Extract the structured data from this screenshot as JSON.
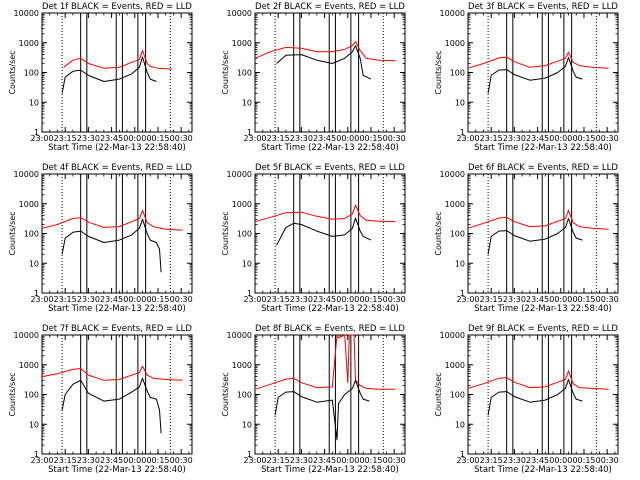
{
  "chart_data": [
    {
      "type": "line",
      "title": "Det 1f BLACK = Events, RED = LLD",
      "xlabel": "Start Time (22-Mar-13 22:58:40)",
      "ylabel": "Counts/sec",
      "x_ticks": [
        "23:00",
        "23:15",
        "23:30",
        "23:45",
        "00:00",
        "00:15",
        "00:30"
      ],
      "y_ticks": [
        "1",
        "10",
        "100",
        "1000",
        "10000"
      ],
      "ylim": [
        1,
        10000
      ],
      "log_y": true,
      "dotted_lines": [
        "23:13",
        "00:23"
      ],
      "solid_lines": [
        "23:25",
        "23:29",
        "23:48",
        "23:52",
        "00:02",
        "00:07"
      ],
      "series": [
        {
          "color": "#ff0000",
          "x": [
            "23:14",
            "23:20",
            "23:25",
            "23:30",
            "23:40",
            "23:50",
            "23:58",
            "00:03",
            "00:05",
            "00:08",
            "00:10",
            "00:15",
            "00:24"
          ],
          "values": [
            150,
            260,
            300,
            200,
            140,
            150,
            220,
            270,
            550,
            200,
            160,
            140,
            130
          ]
        },
        {
          "color": "#000000",
          "x": [
            "23:13",
            "23:15",
            "23:20",
            "23:25",
            "23:30",
            "23:40",
            "23:50",
            "23:58",
            "00:03",
            "00:05",
            "00:08",
            "00:10",
            "00:14"
          ],
          "values": [
            20,
            70,
            110,
            120,
            80,
            50,
            60,
            90,
            150,
            330,
            100,
            60,
            50
          ]
        }
      ]
    },
    {
      "type": "line",
      "title": "Det 2f BLACK = Events, RED = LLD",
      "xlabel": "Start Time (22-Mar-13 22:58:40)",
      "ylabel": "Counts/sec",
      "x_ticks": [
        "23:00",
        "23:15",
        "23:30",
        "23:45",
        "00:00",
        "00:15",
        "00:30"
      ],
      "y_ticks": [
        "1",
        "10",
        "100",
        "1000",
        "10000"
      ],
      "ylim": [
        1,
        10000
      ],
      "log_y": true,
      "dotted_lines": [
        "23:13",
        "00:23"
      ],
      "solid_lines": [
        "23:25",
        "23:29",
        "23:48",
        "23:52",
        "00:02",
        "00:07"
      ],
      "series": [
        {
          "color": "#ff0000",
          "x": [
            "23:00",
            "23:10",
            "23:20",
            "23:30",
            "23:40",
            "23:50",
            "23:58",
            "00:03",
            "00:05",
            "00:08",
            "00:12",
            "00:20",
            "00:31"
          ],
          "values": [
            300,
            500,
            700,
            650,
            500,
            500,
            600,
            800,
            1100,
            550,
            300,
            260,
            250
          ]
        },
        {
          "color": "#000000",
          "x": [
            "23:14",
            "23:20",
            "23:30",
            "23:40",
            "23:50",
            "23:58",
            "00:03",
            "00:05",
            "00:08",
            "00:10",
            "00:15"
          ],
          "values": [
            200,
            380,
            400,
            260,
            200,
            300,
            500,
            800,
            300,
            80,
            60
          ]
        }
      ]
    },
    {
      "type": "line",
      "title": "Det 3f BLACK = Events, RED = LLD",
      "xlabel": "Start Time (22-Mar-13 22:58:40)",
      "ylabel": "Counts/sec",
      "x_ticks": [
        "23:00",
        "23:15",
        "23:30",
        "23:45",
        "00:00",
        "00:15",
        "00:30"
      ],
      "y_ticks": [
        "1",
        "10",
        "100",
        "1000",
        "10000"
      ],
      "ylim": [
        1,
        10000
      ],
      "log_y": true,
      "dotted_lines": [
        "23:13",
        "00:23"
      ],
      "solid_lines": [
        "23:25",
        "23:29",
        "23:48",
        "23:52",
        "00:02",
        "00:07"
      ],
      "series": [
        {
          "color": "#ff0000",
          "x": [
            "23:00",
            "23:10",
            "23:20",
            "23:25",
            "23:30",
            "23:40",
            "23:50",
            "23:58",
            "00:03",
            "00:05",
            "00:08",
            "00:12",
            "00:20",
            "00:31"
          ],
          "values": [
            140,
            200,
            310,
            330,
            230,
            150,
            170,
            240,
            300,
            480,
            220,
            170,
            150,
            140
          ]
        },
        {
          "color": "#000000",
          "x": [
            "23:13",
            "23:15",
            "23:20",
            "23:25",
            "23:30",
            "23:40",
            "23:50",
            "23:58",
            "00:03",
            "00:05",
            "00:08",
            "00:10",
            "00:14"
          ],
          "values": [
            20,
            80,
            120,
            125,
            85,
            55,
            65,
            100,
            160,
            320,
            110,
            70,
            60
          ]
        }
      ]
    },
    {
      "type": "line",
      "title": "Det 4f BLACK = Events, RED = LLD",
      "xlabel": "Start Time (22-Mar-13 22:58:40)",
      "ylabel": "Counts/sec",
      "x_ticks": [
        "23:00",
        "23:15",
        "23:30",
        "23:45",
        "00:00",
        "00:15",
        "00:30"
      ],
      "y_ticks": [
        "1",
        "10",
        "100",
        "1000",
        "10000"
      ],
      "ylim": [
        1,
        10000
      ],
      "log_y": true,
      "dotted_lines": [
        "23:13",
        "00:23"
      ],
      "solid_lines": [
        "23:25",
        "23:29",
        "23:48",
        "23:52",
        "00:02",
        "00:07"
      ],
      "series": [
        {
          "color": "#ff0000",
          "x": [
            "23:00",
            "23:10",
            "23:20",
            "23:25",
            "23:30",
            "23:40",
            "23:50",
            "23:58",
            "00:03",
            "00:05",
            "00:08",
            "00:12",
            "00:20",
            "00:31"
          ],
          "values": [
            150,
            200,
            320,
            340,
            240,
            160,
            170,
            250,
            320,
            600,
            230,
            170,
            140,
            130
          ]
        },
        {
          "color": "#000000",
          "x": [
            "23:13",
            "23:15",
            "23:20",
            "23:25",
            "23:30",
            "23:40",
            "23:50",
            "23:58",
            "00:03",
            "00:05",
            "00:08",
            "00:10",
            "00:14",
            "00:16",
            "00:17"
          ],
          "values": [
            20,
            70,
            110,
            120,
            80,
            50,
            60,
            90,
            150,
            300,
            100,
            60,
            50,
            30,
            5
          ]
        }
      ]
    },
    {
      "type": "line",
      "title": "Det 5f BLACK = Events, RED = LLD",
      "xlabel": "Start Time (22-Mar-13 22:58:40)",
      "ylabel": "Counts/sec",
      "x_ticks": [
        "23:00",
        "23:15",
        "23:30",
        "23:45",
        "00:00",
        "00:15",
        "00:30"
      ],
      "y_ticks": [
        "1",
        "10",
        "100",
        "1000",
        "10000"
      ],
      "ylim": [
        1,
        10000
      ],
      "log_y": true,
      "dotted_lines": [
        "23:13",
        "00:23"
      ],
      "solid_lines": [
        "23:25",
        "23:29",
        "23:48",
        "23:52",
        "00:02",
        "00:07"
      ],
      "series": [
        {
          "color": "#ff0000",
          "x": [
            "23:00",
            "23:10",
            "23:20",
            "23:30",
            "23:40",
            "23:50",
            "23:58",
            "00:03",
            "00:05",
            "00:08",
            "00:12",
            "00:20",
            "00:31"
          ],
          "values": [
            250,
            350,
            500,
            520,
            380,
            300,
            320,
            450,
            900,
            400,
            280,
            260,
            250
          ]
        },
        {
          "color": "#000000",
          "x": [
            "23:14",
            "23:20",
            "23:25",
            "23:30",
            "23:40",
            "23:50",
            "23:58",
            "00:03",
            "00:05",
            "00:08",
            "00:10",
            "00:15"
          ],
          "values": [
            40,
            160,
            220,
            200,
            120,
            80,
            90,
            150,
            330,
            120,
            80,
            60
          ]
        }
      ]
    },
    {
      "type": "line",
      "title": "Det 6f BLACK = Events, RED = LLD",
      "xlabel": "Start Time (22-Mar-13 22:58:40)",
      "ylabel": "Counts/sec",
      "x_ticks": [
        "23:00",
        "23:15",
        "23:30",
        "23:45",
        "00:00",
        "00:15",
        "00:30"
      ],
      "y_ticks": [
        "1",
        "10",
        "100",
        "1000",
        "10000"
      ],
      "ylim": [
        1,
        10000
      ],
      "log_y": true,
      "dotted_lines": [
        "23:13",
        "00:23"
      ],
      "solid_lines": [
        "23:25",
        "23:29",
        "23:48",
        "23:52",
        "00:02",
        "00:07"
      ],
      "series": [
        {
          "color": "#ff0000",
          "x": [
            "23:00",
            "23:10",
            "23:20",
            "23:25",
            "23:30",
            "23:40",
            "23:50",
            "23:58",
            "00:03",
            "00:05",
            "00:08",
            "00:12",
            "00:20",
            "00:31"
          ],
          "values": [
            150,
            220,
            330,
            350,
            250,
            170,
            180,
            260,
            320,
            600,
            230,
            170,
            150,
            140
          ]
        },
        {
          "color": "#000000",
          "x": [
            "23:13",
            "23:15",
            "23:20",
            "23:25",
            "23:30",
            "23:40",
            "23:50",
            "23:58",
            "00:03",
            "00:05",
            "00:08",
            "00:10",
            "00:14"
          ],
          "values": [
            20,
            80,
            120,
            125,
            85,
            55,
            65,
            100,
            160,
            320,
            110,
            70,
            60
          ]
        }
      ]
    },
    {
      "type": "line",
      "title": "Det 7f BLACK = Events, RED = LLD",
      "xlabel": "Start Time (22-Mar-13 22:58:40)",
      "ylabel": "Counts/sec",
      "x_ticks": [
        "23:00",
        "23:15",
        "23:30",
        "23:45",
        "00:00",
        "00:15",
        "00:30"
      ],
      "y_ticks": [
        "1",
        "10",
        "100",
        "1000",
        "10000"
      ],
      "ylim": [
        1,
        10000
      ],
      "log_y": true,
      "dotted_lines": [
        "23:13",
        "00:23"
      ],
      "solid_lines": [
        "23:25",
        "23:29",
        "23:48",
        "23:52",
        "00:02",
        "00:07"
      ],
      "series": [
        {
          "color": "#ff0000",
          "x": [
            "23:00",
            "23:10",
            "23:20",
            "23:25",
            "23:30",
            "23:40",
            "23:50",
            "23:58",
            "00:03",
            "00:05",
            "00:08",
            "00:12",
            "00:20",
            "00:31"
          ],
          "values": [
            400,
            500,
            700,
            750,
            450,
            300,
            320,
            450,
            550,
            900,
            450,
            350,
            320,
            300
          ]
        },
        {
          "color": "#000000",
          "x": [
            "23:13",
            "23:15",
            "23:20",
            "23:25",
            "23:30",
            "23:40",
            "23:50",
            "23:58",
            "00:03",
            "00:05",
            "00:08",
            "00:10",
            "00:14",
            "00:16",
            "00:17"
          ],
          "values": [
            30,
            100,
            220,
            300,
            110,
            60,
            70,
            120,
            180,
            350,
            130,
            80,
            70,
            30,
            5
          ]
        }
      ]
    },
    {
      "type": "line",
      "title": "Det 8f BLACK = Events, RED = LLD",
      "xlabel": "Start Time (22-Mar-13 22:58:40)",
      "ylabel": "Counts/sec",
      "x_ticks": [
        "23:00",
        "23:15",
        "23:30",
        "23:45",
        "00:00",
        "00:15",
        "00:30"
      ],
      "y_ticks": [
        "1",
        "10",
        "100",
        "1000",
        "10000"
      ],
      "ylim": [
        1,
        10000
      ],
      "log_y": true,
      "dotted_lines": [
        "23:13",
        "00:23"
      ],
      "solid_lines": [
        "23:25",
        "23:29",
        "23:48",
        "23:52",
        "00:02",
        "00:07"
      ],
      "series": [
        {
          "color": "#ff0000",
          "x": [
            "23:00",
            "23:10",
            "23:20",
            "23:25",
            "23:30",
            "23:40",
            "23:50",
            "23:53",
            "23:54",
            "23:58",
            "00:00",
            "00:01",
            "00:04",
            "00:05",
            "00:08",
            "00:12",
            "00:20",
            "00:31"
          ],
          "values": [
            150,
            220,
            330,
            350,
            250,
            170,
            180,
            10000,
            8000,
            10000,
            250,
            10000,
            10000,
            300,
            200,
            160,
            150,
            150
          ]
        },
        {
          "color": "#000000",
          "x": [
            "23:13",
            "23:15",
            "23:20",
            "23:25",
            "23:30",
            "23:40",
            "23:50",
            "23:53",
            "23:54",
            "23:58",
            "00:03",
            "00:05",
            "00:08",
            "00:10",
            "00:14"
          ],
          "values": [
            20,
            80,
            120,
            125,
            85,
            55,
            65,
            3,
            50,
            100,
            160,
            300,
            110,
            70,
            60
          ]
        }
      ]
    },
    {
      "type": "line",
      "title": "Det 9f BLACK = Events, RED = LLD",
      "xlabel": "Start Time (22-Mar-13 22:58:40)",
      "ylabel": "Counts/sec",
      "x_ticks": [
        "23:00",
        "23:15",
        "23:30",
        "23:45",
        "00:00",
        "00:15",
        "00:30"
      ],
      "y_ticks": [
        "1",
        "10",
        "100",
        "1000",
        "10000"
      ],
      "ylim": [
        1,
        10000
      ],
      "log_y": true,
      "dotted_lines": [
        "23:13",
        "00:23"
      ],
      "solid_lines": [
        "23:25",
        "23:29",
        "23:48",
        "23:52",
        "00:02",
        "00:07"
      ],
      "series": [
        {
          "color": "#ff0000",
          "x": [
            "23:00",
            "23:10",
            "23:20",
            "23:25",
            "23:30",
            "23:40",
            "23:50",
            "23:58",
            "00:03",
            "00:05",
            "00:08",
            "00:12",
            "00:20",
            "00:31"
          ],
          "values": [
            160,
            230,
            350,
            370,
            260,
            170,
            180,
            260,
            320,
            620,
            230,
            170,
            160,
            150
          ]
        },
        {
          "color": "#000000",
          "x": [
            "23:13",
            "23:15",
            "23:20",
            "23:25",
            "23:30",
            "23:40",
            "23:50",
            "23:58",
            "00:03",
            "00:05",
            "00:08",
            "00:10",
            "00:14"
          ],
          "values": [
            20,
            80,
            120,
            125,
            85,
            55,
            65,
            100,
            160,
            320,
            110,
            70,
            60
          ]
        }
      ]
    }
  ]
}
